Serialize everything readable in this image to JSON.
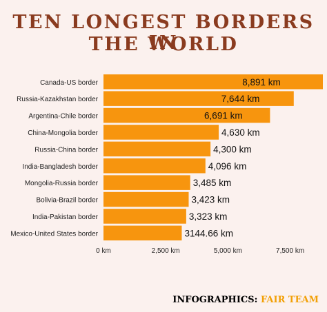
{
  "title_lines": [
    "TEN LONGEST BORDERS IN",
    "THE WORLD"
  ],
  "colors": {
    "bar": "#f7950e",
    "title": "#8a3b1f",
    "background": "#fbf1ee",
    "credit_accent": "#f2a006"
  },
  "credit": {
    "prefix": "INFOGRAPHICS:",
    "name": "FAIR TEAM"
  },
  "chart_data": {
    "type": "bar",
    "orientation": "horizontal",
    "categories": [
      "Canada-US border",
      "Russia-Kazakhstan border",
      "Argentina-Chile border",
      "China-Mongolia border",
      "Russia-China border",
      "India-Bangladesh border",
      "Mongolia-Russia border",
      "Bolivia-Brazil border",
      "India-Pakistan border",
      "Mexico-United States border"
    ],
    "values": [
      8891,
      7644,
      6691,
      4630,
      4300,
      4096,
      3485,
      3423,
      3323,
      3144.66
    ],
    "data_labels": [
      "8,891 km",
      "7,644 km",
      "6,691 km",
      "4,630 km",
      "4,300 km",
      "4,096 km",
      "3,485 km",
      "3,423 km",
      "3,323 km",
      "3144.66 km"
    ],
    "x_ticks": [
      0,
      2500,
      5000,
      7500
    ],
    "x_tick_labels": [
      "0 km",
      "2,500 km",
      "5,000 km",
      "7,500 km"
    ],
    "xlim": [
      0,
      9000
    ],
    "grid": false,
    "legend": "none"
  }
}
